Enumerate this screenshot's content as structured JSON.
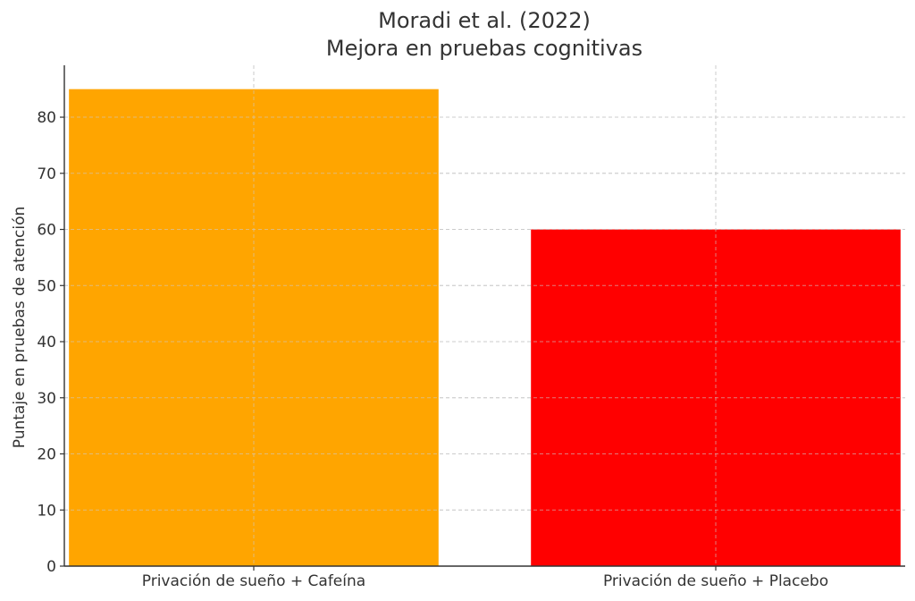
{
  "chart_data": {
    "type": "bar",
    "title": [
      "Moradi et al. (2022)",
      "Mejora en pruebas cognitivas"
    ],
    "xlabel": "",
    "ylabel": "Puntaje en pruebas de atención",
    "categories": [
      "Privación de sueño + Cafeína",
      "Privación de sueño + Placebo"
    ],
    "values": [
      85,
      60
    ],
    "colors": [
      "#FFA500",
      "#FF0000"
    ],
    "ylim": [
      0,
      89.25
    ],
    "yticks": [
      0,
      10,
      20,
      30,
      40,
      50,
      60,
      70,
      80
    ],
    "grid": true
  }
}
